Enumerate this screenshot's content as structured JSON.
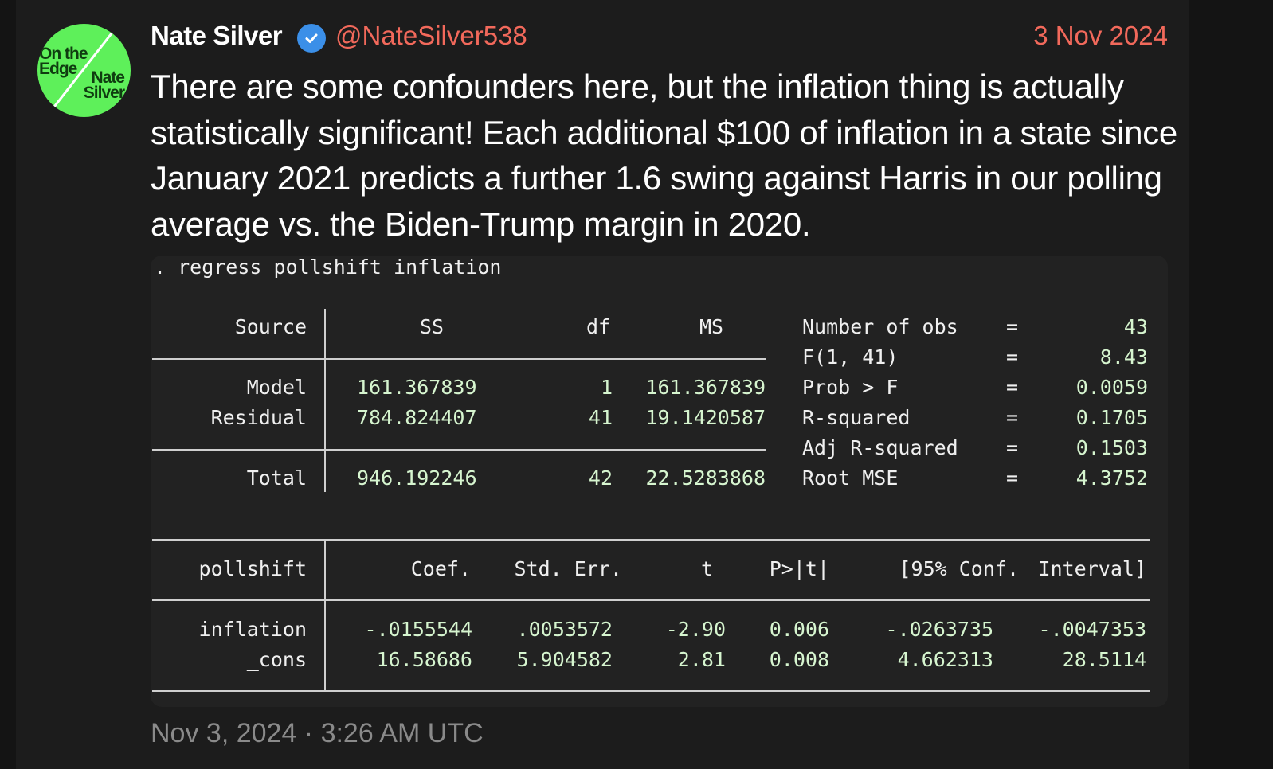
{
  "post": {
    "author": "Nate Silver",
    "handle": "@NateSilver538",
    "date": "3 Nov 2024",
    "avatar_line1": "On the",
    "avatar_line2": "Edge",
    "avatar_line3": "Nate",
    "avatar_line4": "Silver",
    "text": "There are some confounders here, but the inflation thing is actually statistically significant! Each additional $100 of inflation in a state since January 2021 predicts a further 1.6 swing against Harris in our polling average vs. the Biden-Trump margin in 2020.",
    "timestamp": "Nov 3, 2024 · 3:26 AM UTC",
    "verified_icon": "verified-badge-icon",
    "colors": {
      "accent": "#f2695b",
      "verified": "#3b8fe8",
      "avatar_bg": "#5ef05a"
    }
  },
  "stata": {
    "command": ". regress pollshift inflation",
    "anova": {
      "headers": [
        "Source",
        "SS",
        "df",
        "MS"
      ],
      "rows": [
        [
          "Model",
          "161.367839",
          "1",
          "161.367839"
        ],
        [
          "Residual",
          "784.824407",
          "41",
          "19.1420587"
        ],
        [
          "Total",
          "946.192246",
          "42",
          "22.5283868"
        ]
      ]
    },
    "stats": [
      [
        "Number of obs",
        "=",
        "43"
      ],
      [
        "F(1, 41)",
        "=",
        "8.43"
      ],
      [
        "Prob > F",
        "=",
        "0.0059"
      ],
      [
        "R-squared",
        "=",
        "0.1705"
      ],
      [
        "Adj R-squared",
        "=",
        "0.1503"
      ],
      [
        "Root MSE",
        "=",
        "4.3752"
      ]
    ],
    "coef": {
      "headers": [
        "pollshift",
        "Coef.",
        "Std. Err.",
        "t",
        "P>|t|",
        "[95% Conf.",
        "Interval]"
      ],
      "rows": [
        [
          "inflation",
          "-.0155544",
          ".0053572",
          "-2.90",
          "0.006",
          "-.0263735",
          "-.0047353"
        ],
        [
          "_cons",
          "16.58686",
          "5.904582",
          "2.81",
          "0.008",
          "4.662313",
          "28.5114"
        ]
      ]
    }
  }
}
